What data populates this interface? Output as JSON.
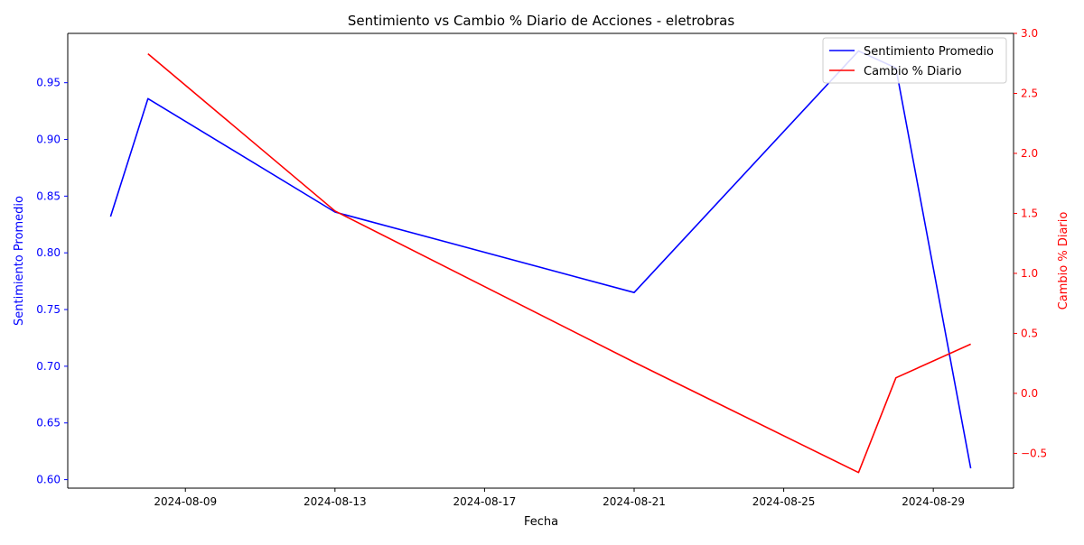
{
  "chart_data": {
    "type": "line",
    "title": "Sentimiento vs Cambio % Diario de Acciones - eletrobras",
    "xlabel": "Fecha",
    "ylabel_left": "Sentimiento Promedio",
    "ylabel_right": "Cambio % Diario",
    "x_ticks": [
      "2024-08-09",
      "2024-08-13",
      "2024-08-17",
      "2024-08-21",
      "2024-08-25",
      "2024-08-29"
    ],
    "y_left_ticks": [
      "0.60",
      "0.65",
      "0.70",
      "0.75",
      "0.80",
      "0.85",
      "0.90",
      "0.95"
    ],
    "y_right_ticks": [
      "−0.5",
      "0.0",
      "0.5",
      "1.0",
      "1.5",
      "2.0",
      "2.5",
      "3.0"
    ],
    "xlim": [
      "2024-08-05 20:30",
      "2024-08-31 03:30"
    ],
    "ylim_left": [
      0.5925,
      0.9935
    ],
    "ylim_right": [
      -0.79,
      3.0
    ],
    "legend_position": "top-right",
    "grid": false,
    "series": [
      {
        "name": "Sentimiento Promedio",
        "axis": "left",
        "color": "#0000ff",
        "x": [
          "2024-08-07",
          "2024-08-08",
          "2024-08-13",
          "2024-08-21",
          "2024-08-27",
          "2024-08-28",
          "2024-08-30"
        ],
        "y": [
          0.832,
          0.936,
          0.836,
          0.765,
          0.978,
          0.963,
          0.61
        ]
      },
      {
        "name": "Cambio % Diario",
        "axis": "right",
        "color": "#ff0000",
        "x": [
          "2024-08-08",
          "2024-08-13",
          "2024-08-21",
          "2024-08-27",
          "2024-08-28",
          "2024-08-30"
        ],
        "y": [
          2.83,
          1.52,
          0.26,
          -0.66,
          0.13,
          0.41
        ]
      }
    ]
  }
}
